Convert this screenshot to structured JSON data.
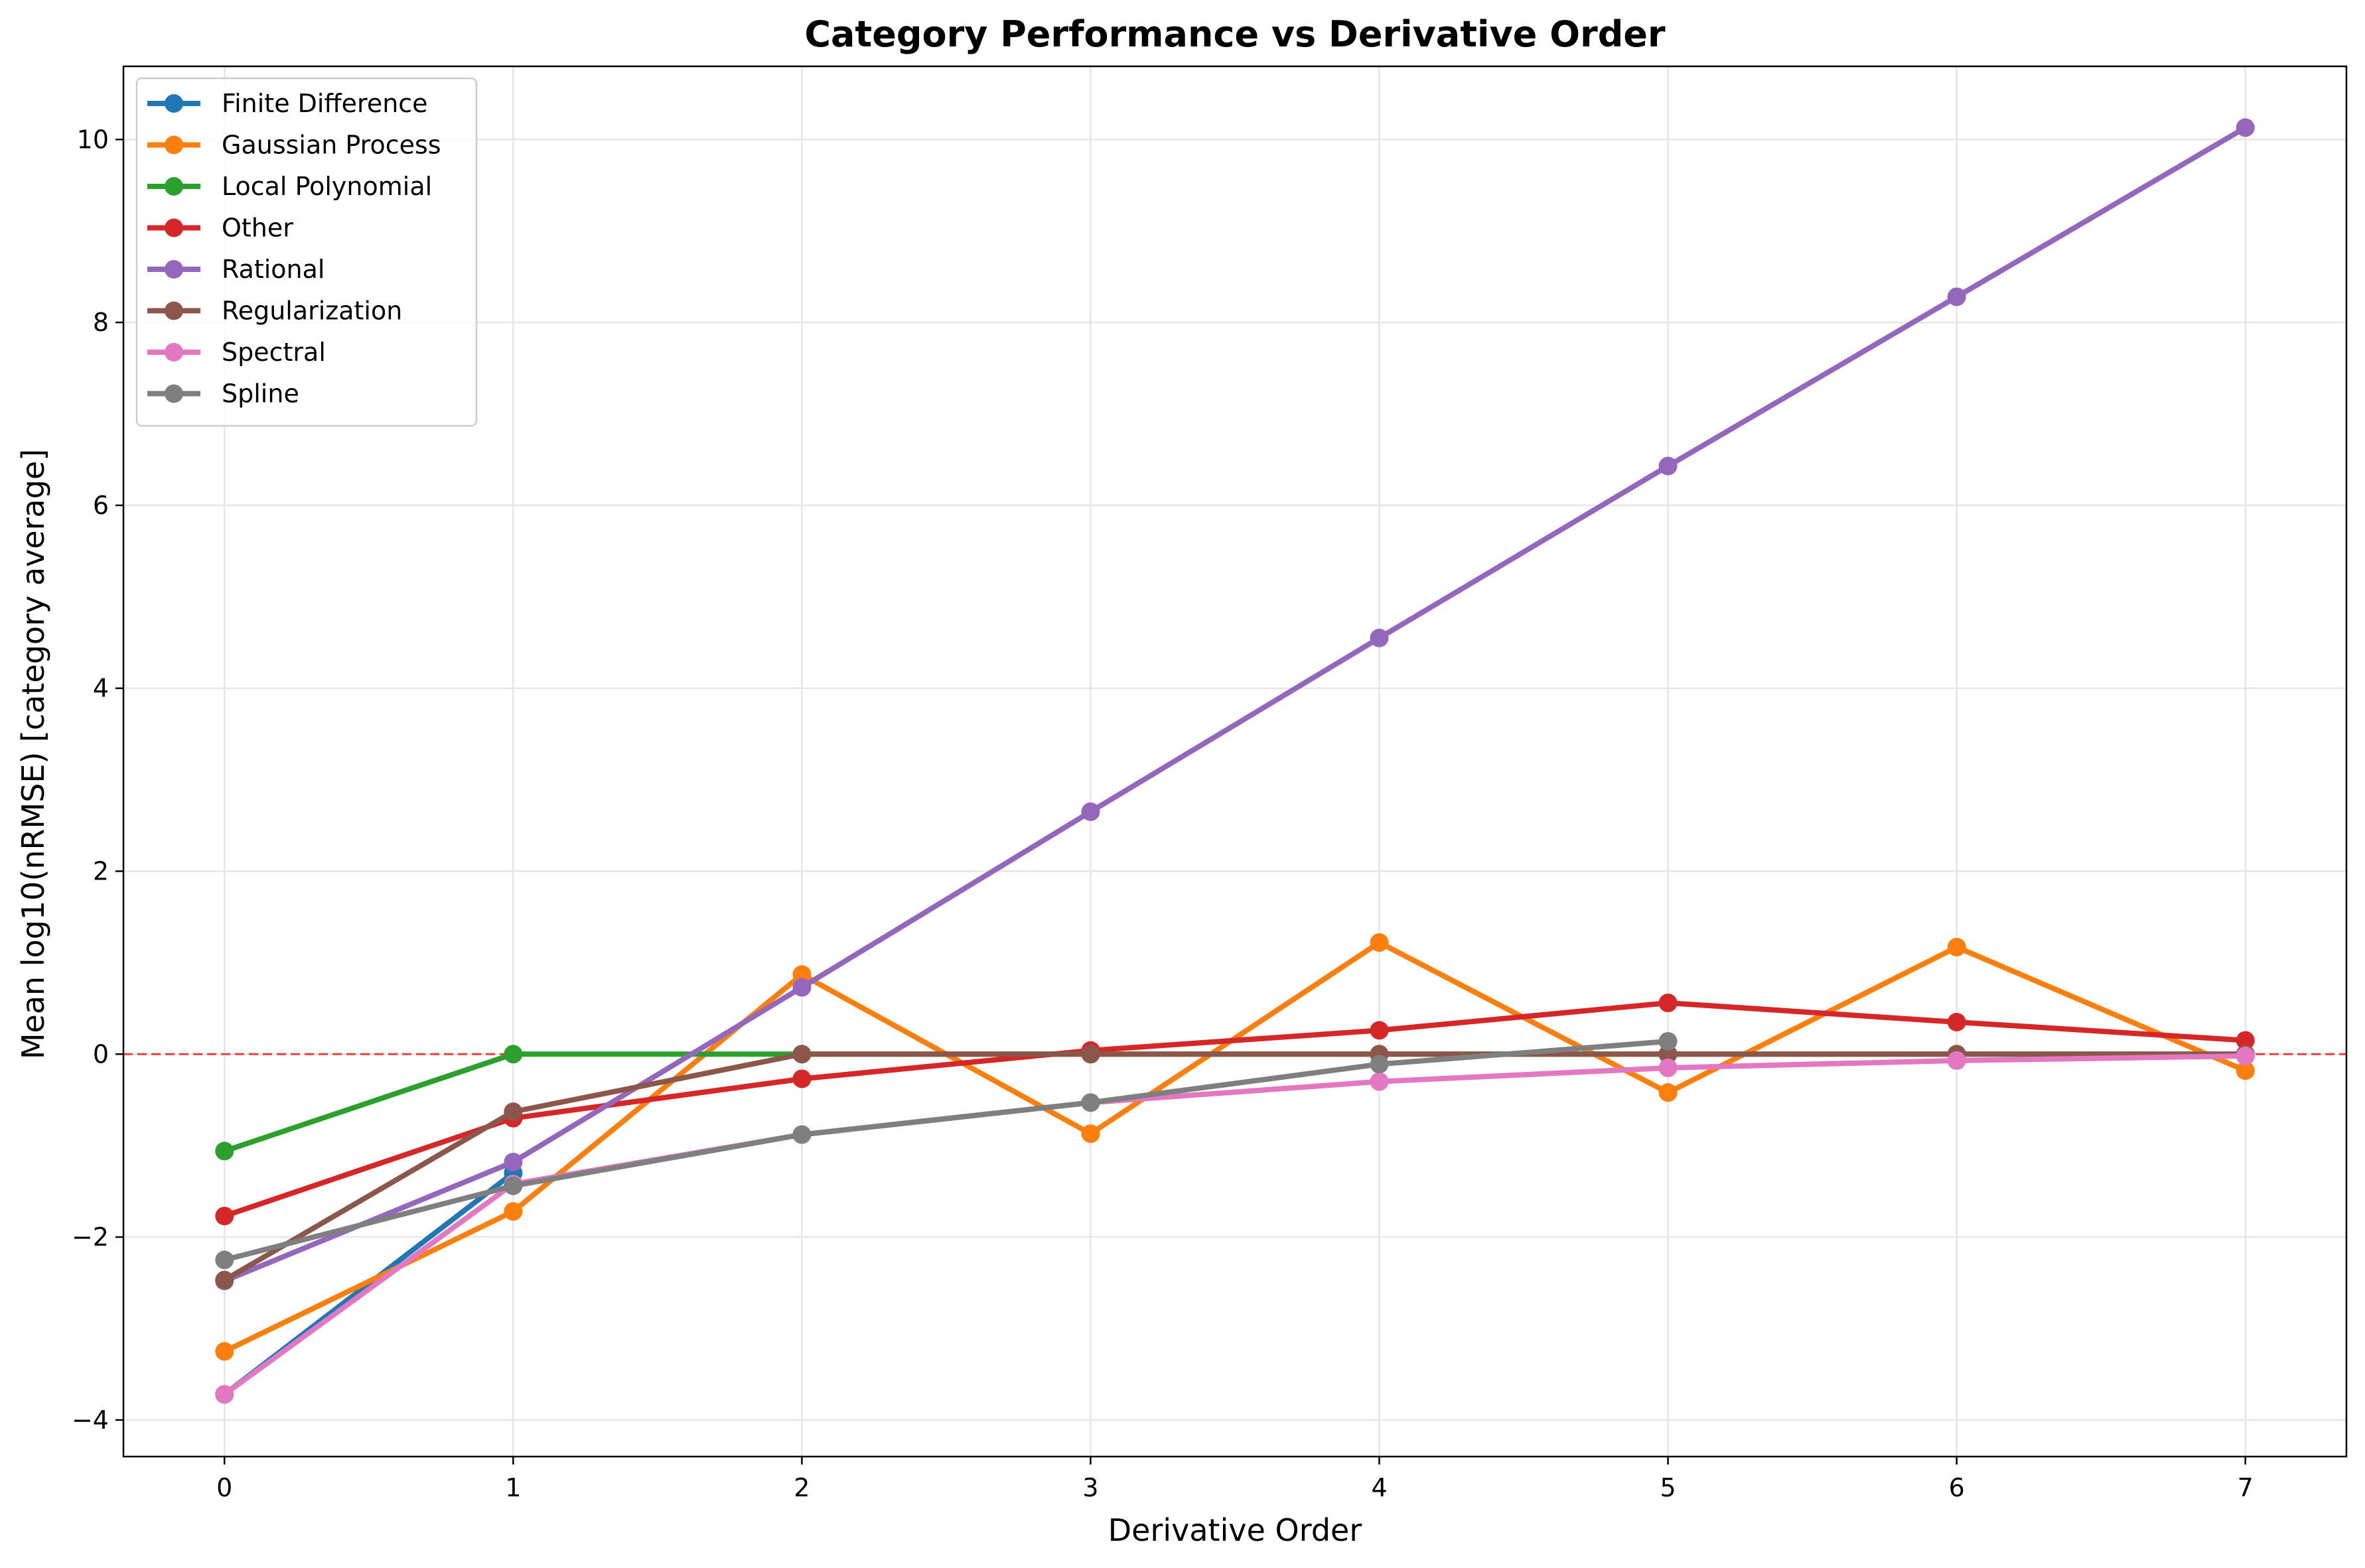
{
  "chart_data": {
    "type": "line",
    "title": "Category Performance vs Derivative Order",
    "xlabel": "Derivative Order",
    "ylabel": "Mean log10(nRMSE) [category average]",
    "x": [
      0,
      1,
      2,
      3,
      4,
      5,
      6,
      7
    ],
    "xlim": [
      -0.35,
      7.35
    ],
    "ylim": [
      -4.4,
      10.8
    ],
    "xticks": [
      0,
      1,
      2,
      3,
      4,
      5,
      6,
      7
    ],
    "yticks": [
      -4,
      -2,
      0,
      2,
      4,
      6,
      8,
      10
    ],
    "ytick_labels": [
      "−4",
      "−2",
      "0",
      "2",
      "4",
      "6",
      "8",
      "10"
    ],
    "grid": true,
    "reference_line": {
      "y": 0,
      "color": "#e8413c",
      "style": "dashed"
    },
    "legend_position": "top-left",
    "series": [
      {
        "name": "Finite Difference",
        "color": "#1f77b4",
        "values": [
          -3.72,
          -1.3,
          null,
          null,
          null,
          null,
          null,
          null
        ]
      },
      {
        "name": "Gaussian Process",
        "color": "#ff7f0e",
        "values": [
          -3.25,
          -1.72,
          0.87,
          -0.87,
          1.22,
          -0.42,
          1.17,
          -0.18
        ]
      },
      {
        "name": "Local Polynomial",
        "color": "#2ca02c",
        "values": [
          -1.06,
          0.0,
          0.0,
          0.0,
          0.0,
          0.0,
          0.0,
          0.0
        ]
      },
      {
        "name": "Other",
        "color": "#d62728",
        "values": [
          -1.77,
          -0.7,
          -0.27,
          0.04,
          0.26,
          0.56,
          0.35,
          0.15
        ]
      },
      {
        "name": "Rational",
        "color": "#9467bd",
        "values": [
          -2.48,
          -1.18,
          0.73,
          2.65,
          4.55,
          6.43,
          8.28,
          10.13
        ]
      },
      {
        "name": "Regularization",
        "color": "#8c564b",
        "values": [
          -2.47,
          -0.63,
          0.0,
          0.0,
          0.0,
          0.0,
          0.0,
          0.0
        ]
      },
      {
        "name": "Spectral",
        "color": "#e377c2",
        "values": [
          -3.72,
          -1.42,
          -0.88,
          -0.53,
          -0.3,
          -0.15,
          -0.07,
          -0.02
        ]
      },
      {
        "name": "Spline",
        "color": "#7f7f7f",
        "values": [
          -2.25,
          -1.44,
          -0.88,
          -0.53,
          -0.11,
          0.14,
          null,
          null
        ]
      }
    ]
  }
}
